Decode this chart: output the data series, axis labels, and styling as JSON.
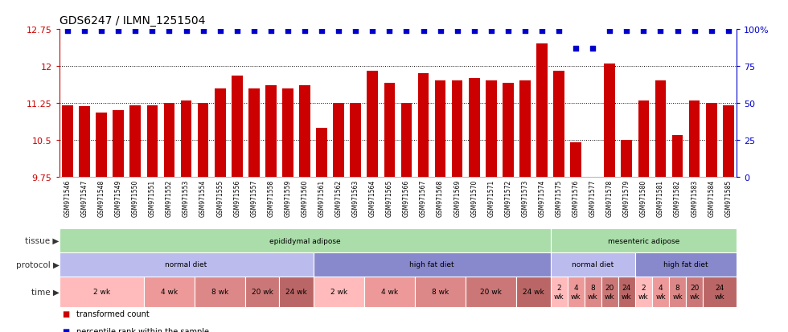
{
  "title": "GDS6247 / ILMN_1251504",
  "samples": [
    "GSM971546",
    "GSM971547",
    "GSM971548",
    "GSM971549",
    "GSM971550",
    "GSM971551",
    "GSM971552",
    "GSM971553",
    "GSM971554",
    "GSM971555",
    "GSM971556",
    "GSM971557",
    "GSM971558",
    "GSM971559",
    "GSM971560",
    "GSM971561",
    "GSM971562",
    "GSM971563",
    "GSM971564",
    "GSM971565",
    "GSM971566",
    "GSM971567",
    "GSM971568",
    "GSM971569",
    "GSM971570",
    "GSM971571",
    "GSM971572",
    "GSM971573",
    "GSM971574",
    "GSM971575",
    "GSM971576",
    "GSM971577",
    "GSM971578",
    "GSM971579",
    "GSM971580",
    "GSM971581",
    "GSM971582",
    "GSM971583",
    "GSM971584",
    "GSM971585"
  ],
  "values": [
    11.2,
    11.19,
    11.05,
    11.1,
    11.2,
    11.2,
    11.25,
    11.3,
    11.25,
    11.55,
    11.8,
    11.55,
    11.6,
    11.55,
    11.6,
    10.75,
    11.25,
    11.25,
    11.9,
    11.65,
    11.25,
    11.85,
    11.7,
    11.7,
    11.75,
    11.7,
    11.65,
    11.7,
    12.45,
    11.9,
    10.45,
    9.75,
    12.05,
    10.5,
    11.3,
    11.7,
    10.6,
    11.3,
    11.25,
    11.2
  ],
  "percentile_values": [
    12.72,
    12.72,
    12.72,
    12.72,
    12.72,
    12.72,
    12.72,
    12.72,
    12.72,
    12.72,
    12.72,
    12.72,
    12.72,
    12.72,
    12.72,
    12.72,
    12.72,
    12.72,
    12.72,
    12.72,
    12.72,
    12.72,
    12.72,
    12.72,
    12.72,
    12.72,
    12.72,
    12.72,
    12.72,
    12.72,
    12.35,
    12.35,
    12.72,
    12.72,
    12.72,
    12.72,
    12.72,
    12.72,
    12.72,
    12.72
  ],
  "bar_color": "#cc0000",
  "dot_color": "#0000cc",
  "ylim": [
    9.75,
    12.75
  ],
  "yticks": [
    9.75,
    10.5,
    11.25,
    12.0,
    12.75
  ],
  "ytick_labels": [
    "9.75",
    "10.5",
    "11.25",
    "12",
    "12.75"
  ],
  "right_yticks": [
    0,
    25,
    50,
    75,
    100
  ],
  "right_ytick_labels": [
    "0",
    "25",
    "50",
    "75",
    "100%"
  ],
  "dotted_lines": [
    10.5,
    11.25,
    12.0
  ],
  "tissue_regions": [
    {
      "label": "epididymal adipose",
      "start": 0,
      "end": 29,
      "color": "#aaddaa"
    },
    {
      "label": "mesenteric adipose",
      "start": 29,
      "end": 40,
      "color": "#aaddaa"
    }
  ],
  "protocol_regions": [
    {
      "label": "normal diet",
      "start": 0,
      "end": 15,
      "color": "#bbbbee"
    },
    {
      "label": "high fat diet",
      "start": 15,
      "end": 29,
      "color": "#8888cc"
    },
    {
      "label": "normal diet",
      "start": 29,
      "end": 34,
      "color": "#bbbbee"
    },
    {
      "label": "high fat diet",
      "start": 34,
      "end": 40,
      "color": "#8888cc"
    }
  ],
  "time_regions": [
    {
      "label": "2 wk",
      "start": 0,
      "end": 5,
      "color": "#ffbbbb"
    },
    {
      "label": "4 wk",
      "start": 5,
      "end": 8,
      "color": "#ee9999"
    },
    {
      "label": "8 wk",
      "start": 8,
      "end": 11,
      "color": "#dd8888"
    },
    {
      "label": "20 wk",
      "start": 11,
      "end": 13,
      "color": "#cc7777"
    },
    {
      "label": "24 wk",
      "start": 13,
      "end": 15,
      "color": "#bb6666"
    },
    {
      "label": "2 wk",
      "start": 15,
      "end": 18,
      "color": "#ffbbbb"
    },
    {
      "label": "4 wk",
      "start": 18,
      "end": 21,
      "color": "#ee9999"
    },
    {
      "label": "8 wk",
      "start": 21,
      "end": 24,
      "color": "#dd8888"
    },
    {
      "label": "20 wk",
      "start": 24,
      "end": 27,
      "color": "#cc7777"
    },
    {
      "label": "24 wk",
      "start": 27,
      "end": 29,
      "color": "#bb6666"
    },
    {
      "label": "2\nwk",
      "start": 29,
      "end": 30,
      "color": "#ffbbbb"
    },
    {
      "label": "4\nwk",
      "start": 30,
      "end": 31,
      "color": "#ee9999"
    },
    {
      "label": "8\nwk",
      "start": 31,
      "end": 32,
      "color": "#dd8888"
    },
    {
      "label": "20\nwk",
      "start": 32,
      "end": 33,
      "color": "#cc7777"
    },
    {
      "label": "24\nwk",
      "start": 33,
      "end": 34,
      "color": "#bb6666"
    },
    {
      "label": "2\nwk",
      "start": 34,
      "end": 35,
      "color": "#ffbbbb"
    },
    {
      "label": "4\nwk",
      "start": 35,
      "end": 36,
      "color": "#ee9999"
    },
    {
      "label": "8\nwk",
      "start": 36,
      "end": 37,
      "color": "#dd8888"
    },
    {
      "label": "20\nwk",
      "start": 37,
      "end": 38,
      "color": "#cc7777"
    },
    {
      "label": "24\nwk",
      "start": 38,
      "end": 40,
      "color": "#bb6666"
    }
  ],
  "legend_items": [
    {
      "label": "transformed count",
      "color": "#cc0000"
    },
    {
      "label": "percentile rank within the sample",
      "color": "#0000cc"
    }
  ],
  "background_color": "#ffffff",
  "row_labels": [
    "tissue",
    "protocol",
    "time"
  ]
}
